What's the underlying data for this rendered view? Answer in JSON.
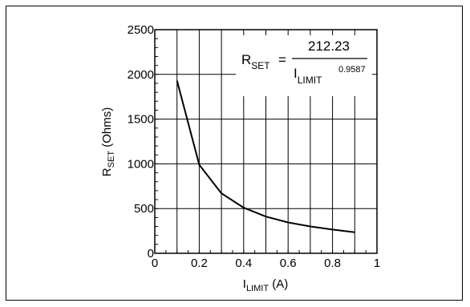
{
  "chart_data": {
    "type": "line",
    "title": "",
    "xlabel": {
      "main": "I",
      "sub": "LIMIT",
      "unit": " (A)"
    },
    "ylabel": {
      "main": "R",
      "sub": "SET",
      "unit": " (Ohms)"
    },
    "xlim": [
      0,
      1
    ],
    "ylim": [
      0,
      2500
    ],
    "x_ticks": [
      "0",
      "0.2",
      "0.4",
      "0.6",
      "0.8",
      "1"
    ],
    "y_ticks": [
      "0",
      "500",
      "1000",
      "1500",
      "2000",
      "2500"
    ],
    "grid": true,
    "legend": "none",
    "series": [
      {
        "x": [
          0.1,
          0.2,
          0.3,
          0.4,
          0.5,
          0.6,
          0.7,
          0.8,
          0.9
        ],
        "y": [
          1930,
          990,
          670,
          510,
          410,
          345,
          300,
          265,
          235
        ]
      }
    ],
    "annotation": {
      "lhs_main": "R",
      "lhs_sub": "SET",
      "equals": "=",
      "numerator": "212.23",
      "den_main": "I",
      "den_sub": "LIMIT",
      "den_exp": "0.9587"
    },
    "colors": {
      "line": "#000000",
      "grid": "#000000"
    }
  }
}
